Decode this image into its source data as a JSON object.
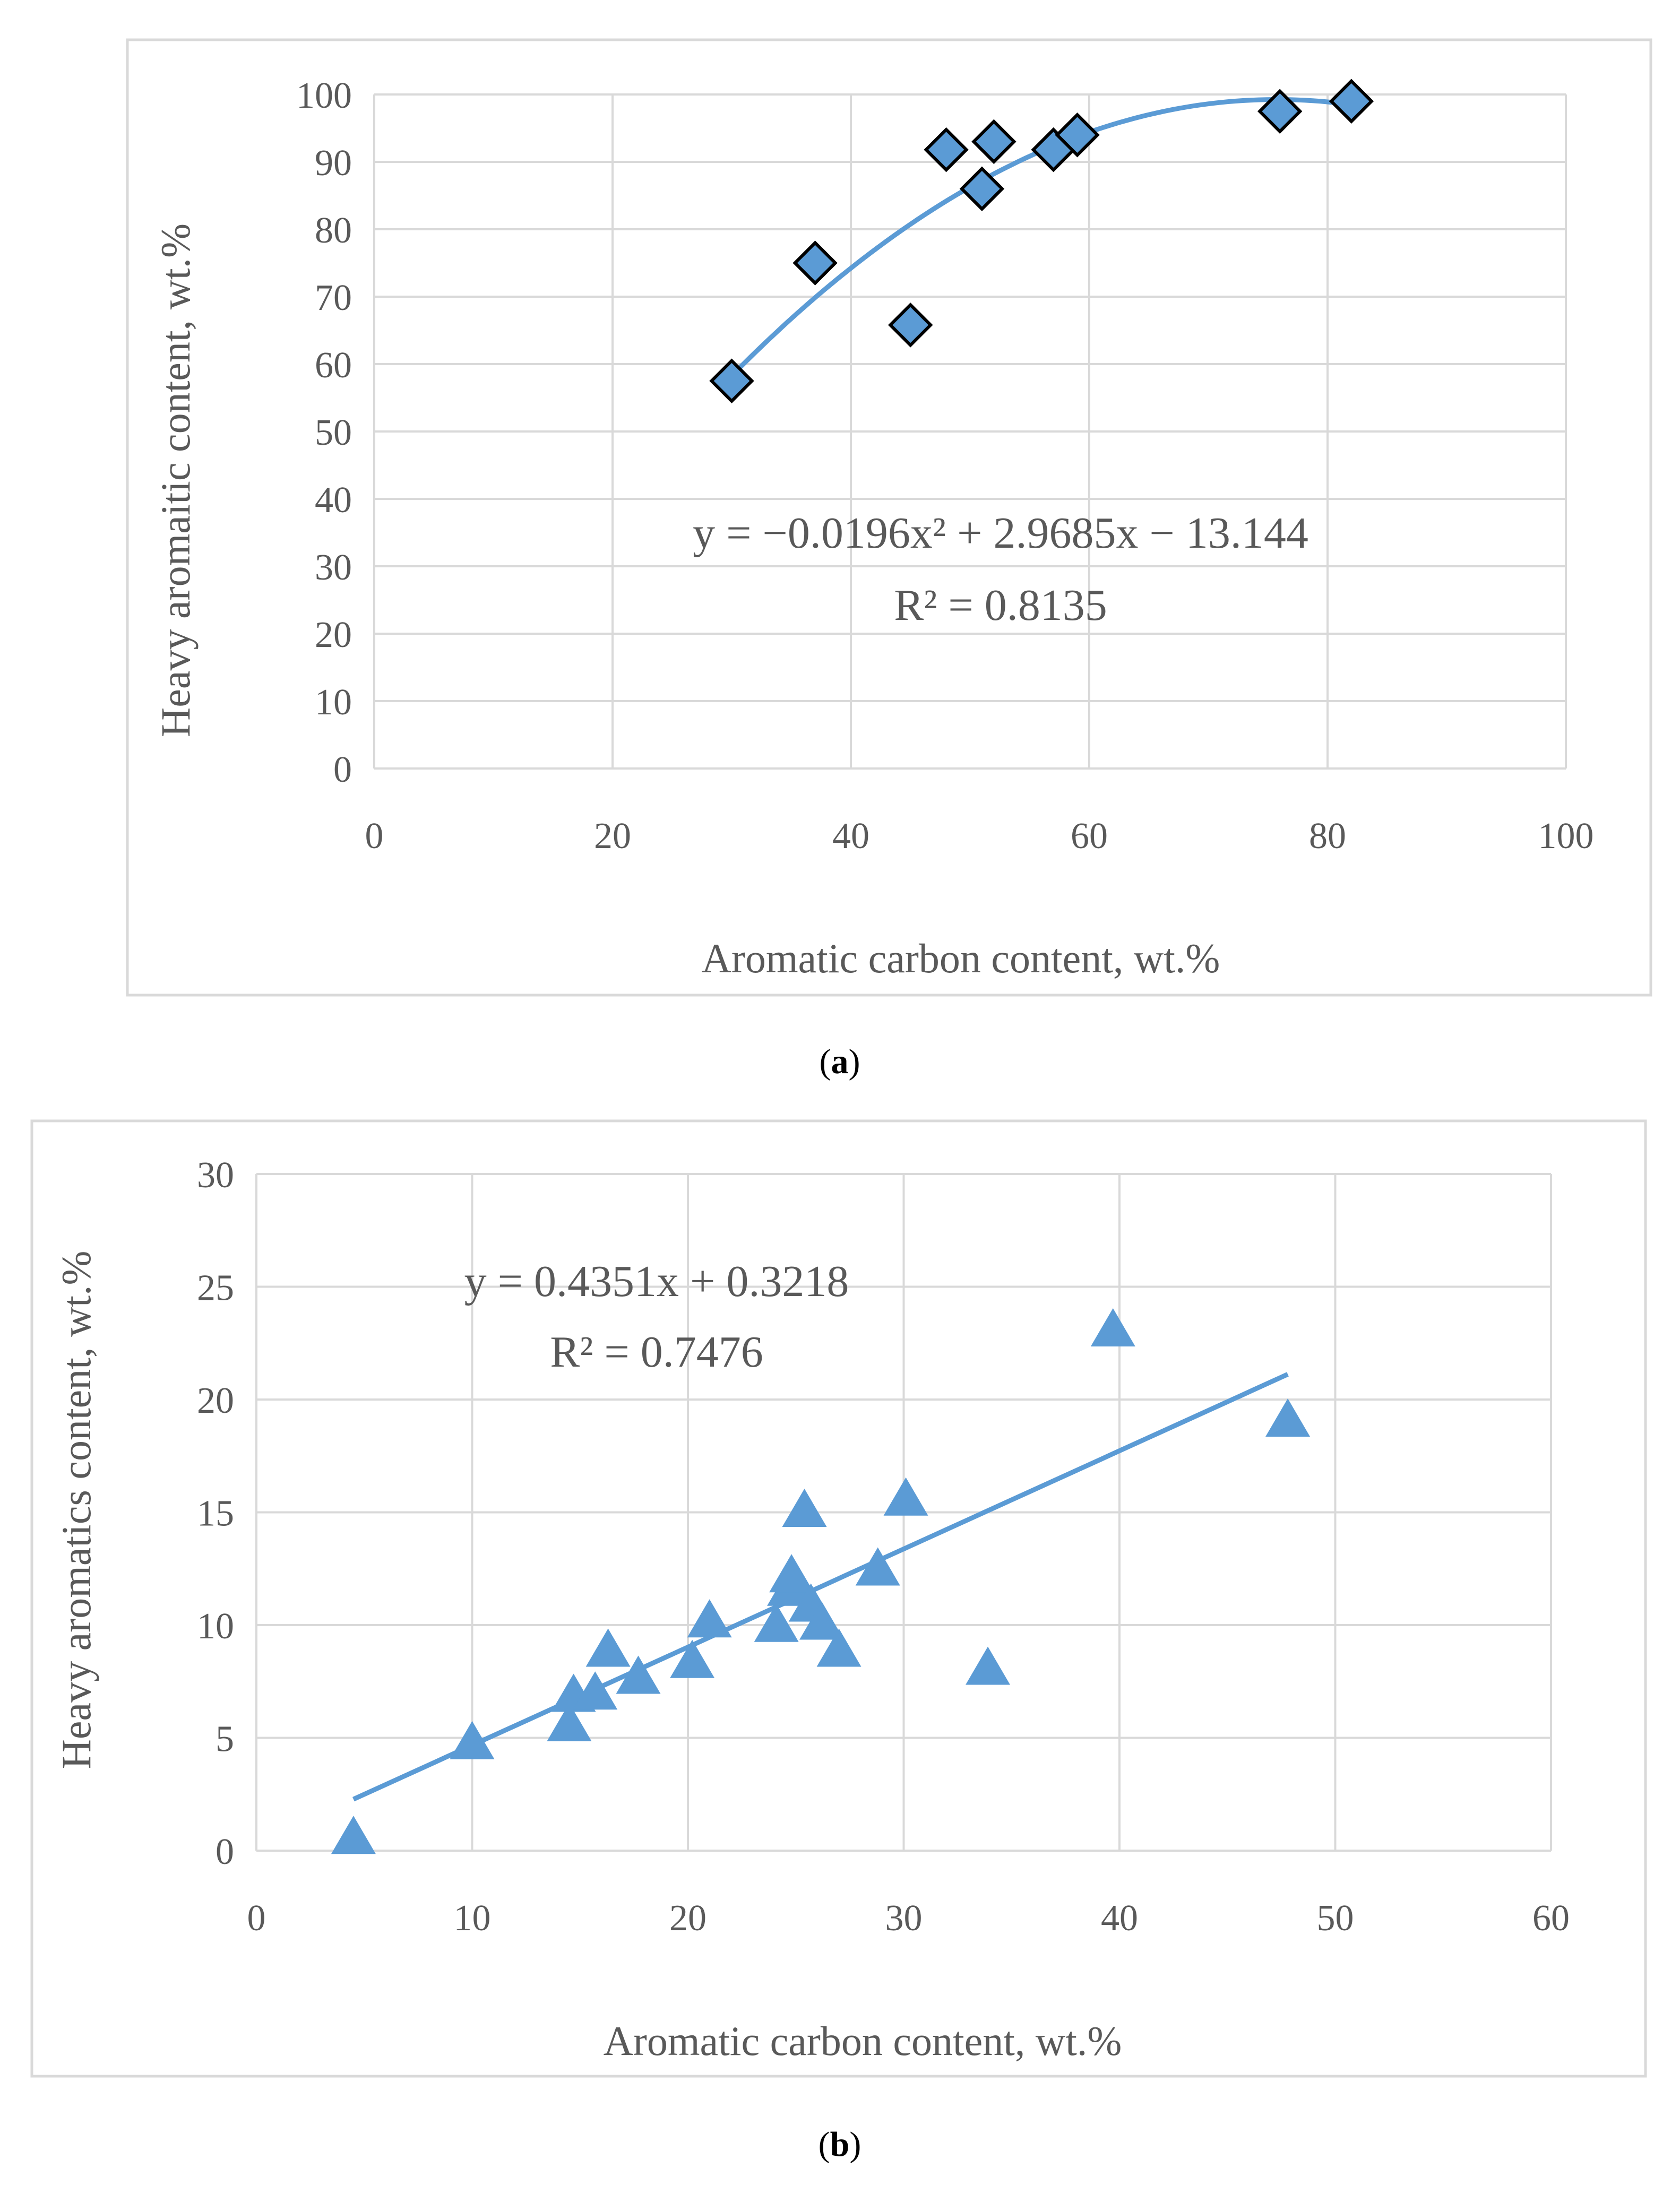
{
  "colors": {
    "accent": "#5b9bd5",
    "marker_edge": "#000000",
    "text": "#595959",
    "grid": "#d9d9d9"
  },
  "chart_data": [
    {
      "type": "scatter",
      "panel_label": "a",
      "marker": "diamond",
      "xlabel": "Aromatic carbon content, wt.%",
      "ylabel": "Heavy aromaitic content, wt.%",
      "xlim": [
        0,
        100
      ],
      "ylim": [
        0,
        100
      ],
      "xticks": [
        0,
        20,
        40,
        60,
        80,
        100
      ],
      "yticks": [
        0,
        10,
        20,
        30,
        40,
        50,
        60,
        70,
        80,
        90,
        100
      ],
      "grid": true,
      "points": [
        [
          30,
          57.5
        ],
        [
          37,
          75
        ],
        [
          45,
          65.8
        ],
        [
          48,
          91.8
        ],
        [
          51,
          86
        ],
        [
          52,
          93
        ],
        [
          57,
          91.8
        ],
        [
          59,
          94
        ],
        [
          76,
          97.5
        ],
        [
          82,
          99
        ]
      ],
      "trendline": {
        "type": "polynomial",
        "coeffs": [
          -0.0196,
          2.9685,
          -13.144
        ],
        "x_range": [
          30,
          82
        ]
      },
      "equation": "y = −0.0196x² + 2.9685x − 13.144",
      "r_squared": "R² = 0.8135"
    },
    {
      "type": "scatter",
      "panel_label": "b",
      "marker": "triangle",
      "xlabel": "Aromatic carbon content, wt.%",
      "ylabel": "Heavy aromatics content, wt.%",
      "xlim": [
        0,
        60
      ],
      "ylim": [
        0,
        30
      ],
      "xticks": [
        0,
        10,
        20,
        30,
        40,
        50,
        60
      ],
      "yticks": [
        0,
        5,
        10,
        15,
        20,
        25,
        30
      ],
      "grid": true,
      "points": [
        [
          4.5,
          0.7
        ],
        [
          10,
          4.9
        ],
        [
          14.5,
          5.7
        ],
        [
          14.7,
          7
        ],
        [
          15.7,
          7.1
        ],
        [
          16.3,
          9
        ],
        [
          17.7,
          7.8
        ],
        [
          20.2,
          8.5
        ],
        [
          21,
          10.3
        ],
        [
          24.1,
          10.1
        ],
        [
          24.7,
          11.7
        ],
        [
          24.8,
          12.3
        ],
        [
          25.4,
          15.2
        ],
        [
          25.7,
          11
        ],
        [
          26.2,
          10.2
        ],
        [
          27,
          9
        ],
        [
          28.8,
          12.6
        ],
        [
          30.1,
          15.7
        ],
        [
          33.9,
          8.2
        ],
        [
          39.7,
          23.2
        ],
        [
          47.8,
          19.2
        ]
      ],
      "trendline": {
        "type": "linear",
        "coeffs": [
          0.4351,
          0.3218
        ],
        "x_range": [
          4.5,
          47.8
        ]
      },
      "equation": "y = 0.4351x + 0.3218",
      "r_squared": "R² = 0.7476"
    }
  ]
}
